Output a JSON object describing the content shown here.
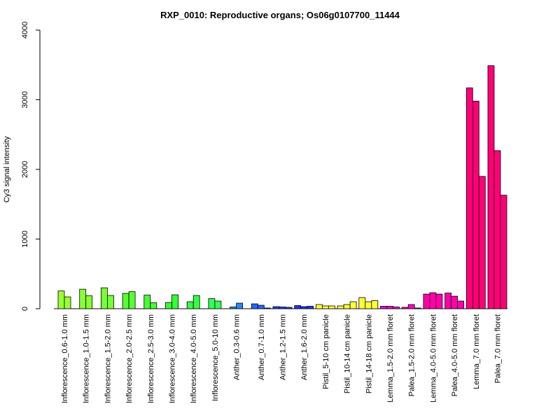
{
  "chart_data": {
    "type": "bar",
    "title": "RXP_0010: Reproductive organs; Os06g0107700_11444",
    "ylabel": "Cy3 signal intensity",
    "xlabel": "",
    "ylim": [
      0,
      4000
    ],
    "yticks": [
      0,
      1000,
      2000,
      3000,
      4000
    ],
    "grid": false,
    "groups": [
      {
        "label": "Inflorescence_0.6-1.0 mm",
        "color": "#99ff33",
        "values": [
          255,
          170
        ]
      },
      {
        "label": "Inflorescence_1.0-1.5 mm",
        "color": "#88ff33",
        "values": [
          280,
          185
        ]
      },
      {
        "label": "Inflorescence_1.5-2.0 mm",
        "color": "#77ff33",
        "values": [
          300,
          190
        ]
      },
      {
        "label": "Inflorescence_2.0-2.5 mm",
        "color": "#55ff33",
        "values": [
          220,
          245
        ]
      },
      {
        "label": "Inflorescence_2.5-3.0 mm",
        "color": "#44ff33",
        "values": [
          195,
          85
        ]
      },
      {
        "label": "Inflorescence_3.0-4.0 mm",
        "color": "#33ff33",
        "values": [
          90,
          200
        ]
      },
      {
        "label": "Inflorescence_4.0-5.0 mm",
        "color": "#33ff44",
        "values": [
          100,
          190
        ]
      },
      {
        "label": "Inflorescence_5.0-10 mm",
        "color": "#33ff55",
        "values": [
          145,
          110
        ]
      },
      {
        "label": "Anther_0.3-0.6 mm",
        "color": "#2288ff",
        "values": [
          25,
          80
        ]
      },
      {
        "label": "Anther_0.7-1.0 mm",
        "color": "#2266ff",
        "values": [
          70,
          50,
          10
        ]
      },
      {
        "label": "Anther_1.2-1.5 mm",
        "color": "#2244ff",
        "values": [
          30,
          25,
          20
        ]
      },
      {
        "label": "Anther_1.6-2.0 mm",
        "color": "#2233ff",
        "values": [
          45,
          30,
          35
        ]
      },
      {
        "label": "Pistil_5-10 cm panicle",
        "color": "#ffff33",
        "values": [
          60,
          40,
          40
        ]
      },
      {
        "label": "Pistil_10-14 cm panicle",
        "color": "#ffff33",
        "values": [
          40,
          60,
          100
        ]
      },
      {
        "label": "Pistil_14-18 cm panicle",
        "color": "#ffff33",
        "values": [
          160,
          100,
          115
        ]
      },
      {
        "label": "Lemma_1.5-2.0 mm floret",
        "color": "#ff00cc",
        "values": [
          35,
          35,
          25
        ]
      },
      {
        "label": "Palea_1.5-2.0 mm floret",
        "color": "#ff00cc",
        "values": [
          20,
          60,
          10
        ]
      },
      {
        "label": "Lemma_4.0-5.0 mm floret",
        "color": "#ff00aa",
        "values": [
          210,
          230,
          210
        ]
      },
      {
        "label": "Palea_4.0-5.0 mm floret",
        "color": "#ff00aa",
        "values": [
          225,
          180,
          110
        ]
      },
      {
        "label": "Lemma_7.0 mm floret",
        "color": "#ff0077",
        "values": [
          3170,
          2980,
          1900
        ]
      },
      {
        "label": "Palea_7.0 mm floret",
        "color": "#ff0077",
        "values": [
          3490,
          2270,
          1630
        ]
      }
    ]
  }
}
